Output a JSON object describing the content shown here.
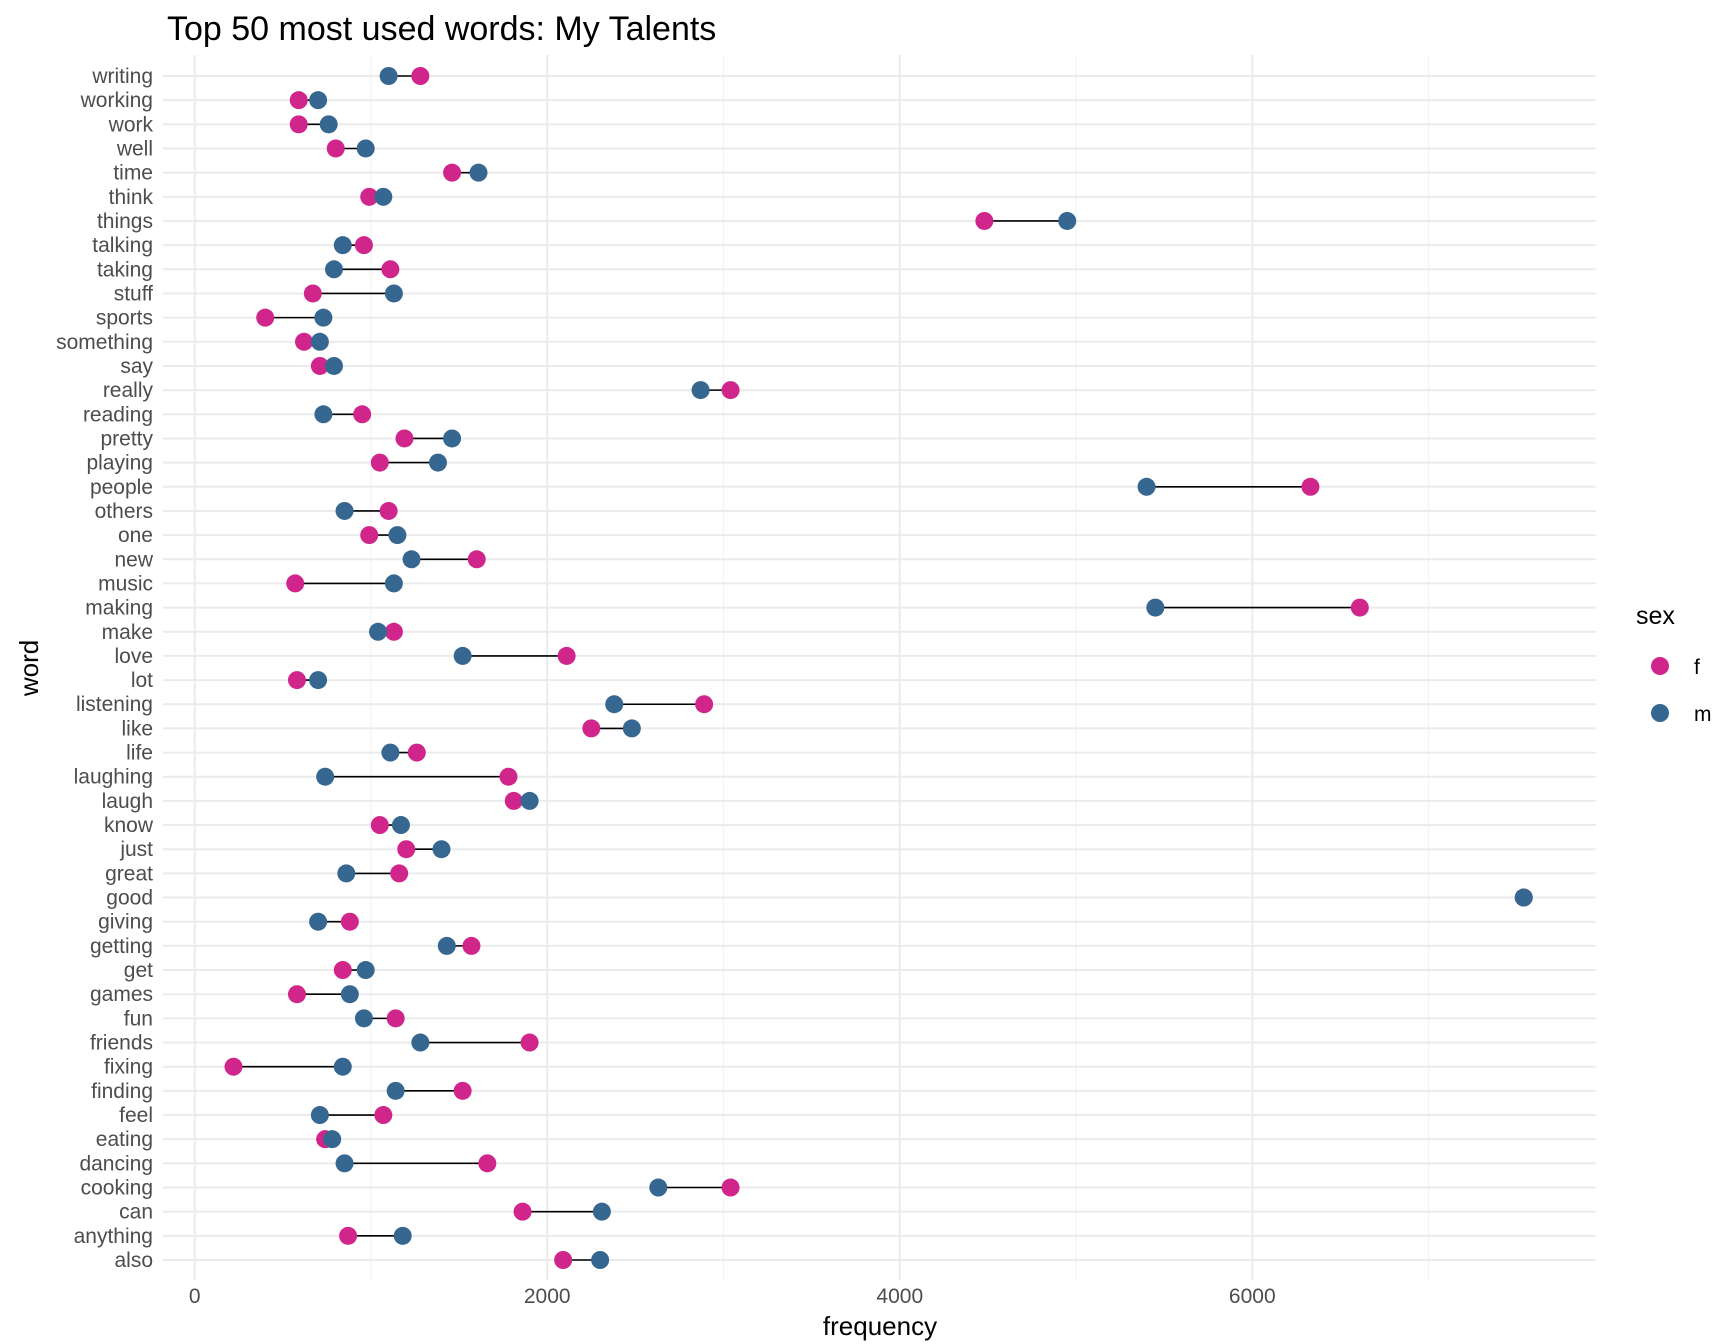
{
  "chart_data": {
    "type": "dumbbell",
    "title": "Top 50 most used words: My Talents",
    "xlabel": "frequency",
    "ylabel": "word",
    "xlim": [
      -180,
      7950
    ],
    "x_ticks": [
      0,
      2000,
      4000,
      6000
    ],
    "x_tick_labels": [
      "0",
      "2000",
      "4000",
      "6000"
    ],
    "x_minor_ticks": [
      1000,
      3000,
      5000,
      7000
    ],
    "grid": true,
    "legend": {
      "title": "sex",
      "position": "right",
      "entries": [
        {
          "key": "f",
          "label": "f",
          "color": "#d0268c"
        },
        {
          "key": "m",
          "label": "m",
          "color": "#366791"
        }
      ]
    },
    "categories": [
      "writing",
      "working",
      "work",
      "well",
      "time",
      "think",
      "things",
      "talking",
      "taking",
      "stuff",
      "sports",
      "something",
      "say",
      "really",
      "reading",
      "pretty",
      "playing",
      "people",
      "others",
      "one",
      "new",
      "music",
      "making",
      "make",
      "love",
      "lot",
      "listening",
      "like",
      "life",
      "laughing",
      "laugh",
      "know",
      "just",
      "great",
      "good",
      "giving",
      "getting",
      "get",
      "games",
      "fun",
      "friends",
      "fixing",
      "finding",
      "feel",
      "eating",
      "dancing",
      "cooking",
      "can",
      "anything",
      "also"
    ],
    "series": [
      {
        "name": "f",
        "color": "#d0268c",
        "values": [
          1280,
          590,
          590,
          800,
          1460,
          990,
          4480,
          960,
          1110,
          670,
          400,
          620,
          710,
          3040,
          950,
          1190,
          1050,
          6330,
          1100,
          990,
          1600,
          570,
          6610,
          1130,
          2110,
          580,
          2890,
          2250,
          1260,
          1780,
          1810,
          1050,
          1200,
          1160,
          7540,
          880,
          1570,
          840,
          580,
          1140,
          1900,
          220,
          1520,
          1070,
          740,
          1660,
          3040,
          1860,
          870,
          2090
        ]
      },
      {
        "name": "m",
        "color": "#366791",
        "values": [
          1100,
          700,
          760,
          970,
          1610,
          1070,
          4950,
          840,
          790,
          1130,
          730,
          710,
          790,
          2870,
          730,
          1460,
          1380,
          5400,
          850,
          1150,
          1230,
          1130,
          5450,
          1040,
          1520,
          700,
          2380,
          2480,
          1110,
          740,
          1900,
          1170,
          1400,
          860,
          7540,
          700,
          1430,
          970,
          880,
          960,
          1280,
          840,
          1140,
          710,
          780,
          850,
          2630,
          2310,
          1180,
          2300
        ]
      }
    ]
  }
}
